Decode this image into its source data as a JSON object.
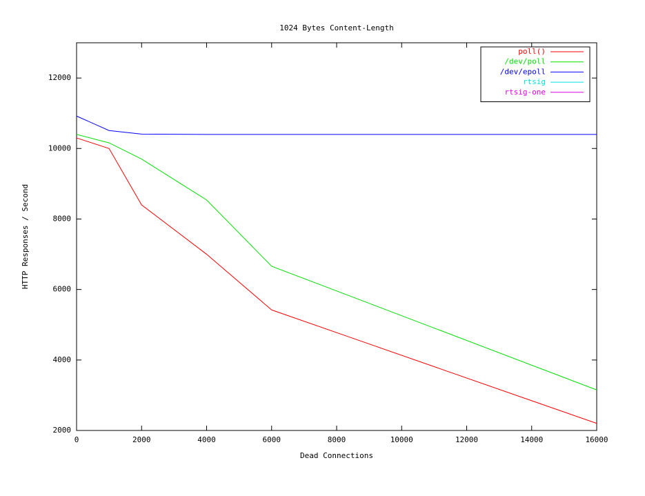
{
  "chart_data": {
    "type": "line",
    "title": "1024 Bytes Content-Length",
    "x_label": "Dead Connections",
    "y_label": "HTTP Responses / Second",
    "x": [
      0,
      1000,
      2000,
      4000,
      6000,
      16000
    ],
    "series": [
      {
        "name": "poll()",
        "color": "#ff0000",
        "values": [
          10300,
          10000,
          8400,
          7000,
          5420,
          2200
        ]
      },
      {
        "name": "/dev/poll",
        "color": "#00e000",
        "values": [
          10400,
          10160,
          9700,
          8540,
          6660,
          3150
        ]
      },
      {
        "name": "/dev/epoll",
        "color": "#0000ff",
        "values": [
          10920,
          10510,
          10410,
          10400,
          10400,
          10400
        ]
      },
      {
        "name": "rtsig",
        "color": "#00e0e0",
        "values": [
          null,
          null,
          null,
          null,
          null,
          null
        ]
      },
      {
        "name": "rtsig-one",
        "color": "#e000e0",
        "values": [
          null,
          null,
          null,
          null,
          null,
          null
        ]
      }
    ],
    "xlim": [
      0,
      16000
    ],
    "xticks": [
      0,
      2000,
      4000,
      6000,
      8000,
      10000,
      12000,
      14000,
      16000
    ],
    "ylim": [
      2000,
      13000
    ],
    "yticks": [
      2000,
      4000,
      6000,
      8000,
      10000,
      12000
    ],
    "grid": false,
    "legend": "top-right"
  }
}
